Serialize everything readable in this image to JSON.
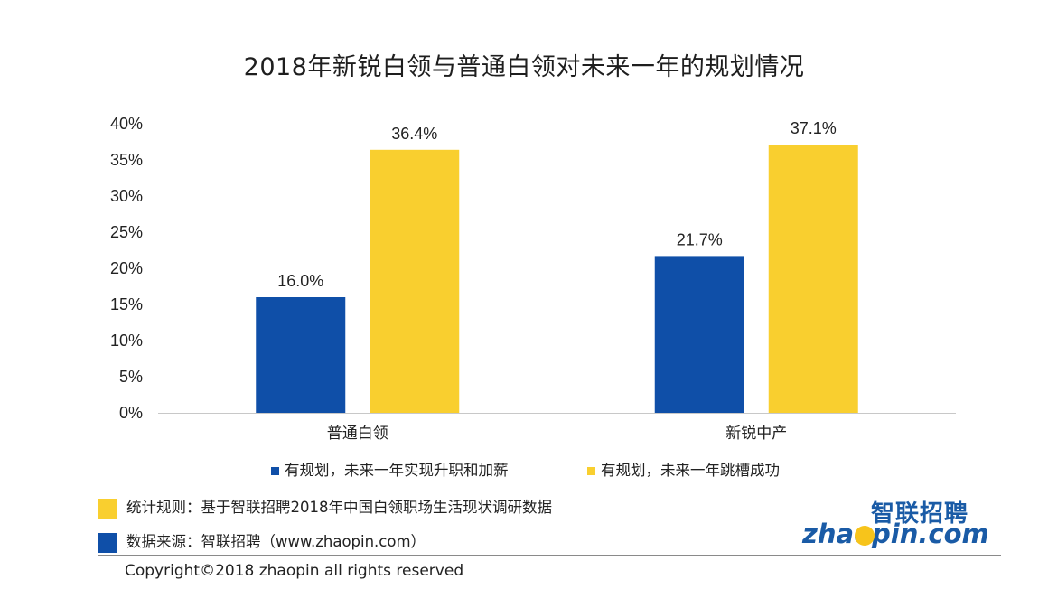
{
  "chart_data": {
    "type": "bar",
    "title": "2018年新锐白领与普通白领对未来一年的规划情况",
    "categories": [
      "普通白领",
      "新锐中产"
    ],
    "series": [
      {
        "name": "有规划，未来一年实现升职和加薪",
        "values": [
          16.0,
          21.7
        ],
        "color": "#0f4fa8"
      },
      {
        "name": "有规划，未来一年跳槽成功",
        "values": [
          36.4,
          37.1
        ],
        "color": "#f9cf2f"
      }
    ],
    "value_labels": [
      [
        "16.0%",
        "21.7%"
      ],
      [
        "36.4%",
        "37.1%"
      ]
    ],
    "y_ticks": [
      "0%",
      "5%",
      "10%",
      "15%",
      "20%",
      "25%",
      "30%",
      "35%",
      "40%"
    ],
    "ylim": [
      0,
      40
    ],
    "grid": false,
    "legend_position": "bottom"
  },
  "notes": [
    {
      "text": "统计规则：基于智联招聘2018年中国白领职场生活现状调研数据",
      "color": "#f9cf2f"
    },
    {
      "text": "数据来源：智联招聘（www.zhaopin.com）",
      "color": "#0f4fa8"
    }
  ],
  "logo": {
    "cn": "智联招聘",
    "en": "zhaopin.com",
    "icon": "zhaopin-logo"
  },
  "copyright": "Copyright©2018 zhaopin all rights reserved"
}
